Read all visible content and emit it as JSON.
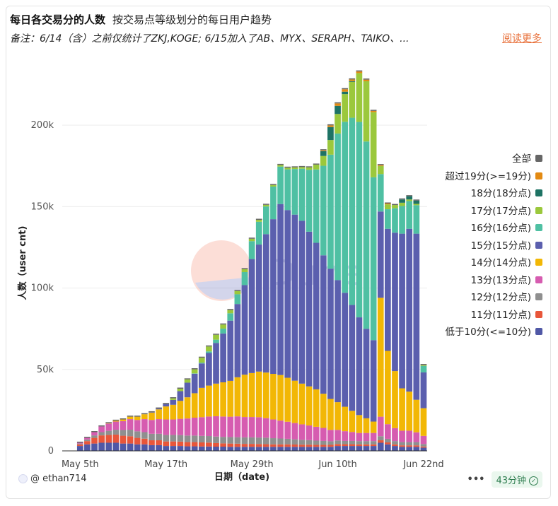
{
  "header": {
    "title": "每日各交易分的人数",
    "subtitle": "按交易点等级划分的每日用户趋势",
    "note": "备注：6/14（含）之前仅统计了ZKJ,KOGE; 6/15加入了AB、MYX、SERAPH、TAIKO、...",
    "read_more": "阅读更多"
  },
  "footer": {
    "author": "@ ethan714",
    "more": "•••",
    "time_badge": "43分钟",
    "check": "✓"
  },
  "watermark": "Dune",
  "colors": {
    "background": "#ffffff",
    "link": "#e8703a",
    "badge_bg": "#eaf7ee",
    "badge_text": "#2e7d4f"
  },
  "chart_data": {
    "type": "bar",
    "stacked": true,
    "title": "",
    "xlabel": "日期（date)",
    "ylabel": "人数（user cnt)",
    "ylim": [
      0,
      240000
    ],
    "yticks": [
      0,
      50000,
      100000,
      150000,
      200000
    ],
    "ytick_labels": [
      "0",
      "50k",
      "100k",
      "150k",
      "200k"
    ],
    "xtick_labels": [
      "May 5th",
      "May 17th",
      "May 29th",
      "Jun 10th",
      "Jun 22nd"
    ],
    "xtick_dates": [
      "2025-05-05",
      "2025-05-17",
      "2025-05-29",
      "2025-06-10",
      "2025-06-22"
    ],
    "x_start": "2025-05-03",
    "x_end": "2025-06-23",
    "grid": true,
    "legend_position": "right",
    "dates": [
      "2025-05-05",
      "2025-05-06",
      "2025-05-07",
      "2025-05-08",
      "2025-05-09",
      "2025-05-10",
      "2025-05-11",
      "2025-05-12",
      "2025-05-13",
      "2025-05-14",
      "2025-05-15",
      "2025-05-16",
      "2025-05-17",
      "2025-05-18",
      "2025-05-19",
      "2025-05-20",
      "2025-05-21",
      "2025-05-22",
      "2025-05-23",
      "2025-05-24",
      "2025-05-25",
      "2025-05-26",
      "2025-05-27",
      "2025-05-28",
      "2025-05-29",
      "2025-05-30",
      "2025-05-31",
      "2025-06-01",
      "2025-06-02",
      "2025-06-03",
      "2025-06-04",
      "2025-06-05",
      "2025-06-06",
      "2025-06-07",
      "2025-06-08",
      "2025-06-09",
      "2025-06-10",
      "2025-06-11",
      "2025-06-12",
      "2025-06-13",
      "2025-06-14",
      "2025-06-15",
      "2025-06-16",
      "2025-06-17",
      "2025-06-18",
      "2025-06-19",
      "2025-06-20",
      "2025-06-21",
      "2025-06-22"
    ],
    "legend_extra": {
      "name": "全部",
      "color": "#666666"
    },
    "series": [
      {
        "name": "低于10分(<=10分)",
        "color": "#5058a6",
        "values": [
          3000,
          4000,
          4500,
          5000,
          5000,
          5000,
          4500,
          4500,
          4000,
          4000,
          3500,
          3500,
          3000,
          3000,
          3000,
          2800,
          2800,
          2700,
          2700,
          2600,
          2600,
          2500,
          2500,
          2500,
          2500,
          2500,
          2500,
          2500,
          2500,
          2500,
          2500,
          2500,
          2500,
          2500,
          2500,
          2500,
          3000,
          3000,
          3000,
          3000,
          3000,
          3000,
          5000,
          4000,
          3000,
          2500,
          2500,
          2500,
          2000
        ]
      },
      {
        "name": "11分(11分点)",
        "color": "#e8563a",
        "values": [
          1000,
          2000,
          3500,
          4500,
          4800,
          5000,
          4800,
          4500,
          4000,
          3500,
          3000,
          3000,
          2800,
          2800,
          2700,
          2600,
          2600,
          2500,
          2400,
          2200,
          2000,
          2000,
          1900,
          1800,
          1800,
          1700,
          1600,
          1500,
          1500,
          1500,
          1400,
          1300,
          1300,
          1200,
          1200,
          1200,
          1200,
          1100,
          1100,
          1000,
          1000,
          1000,
          1500,
          1200,
          1000,
          900,
          900,
          900,
          700
        ]
      },
      {
        "name": "12分(12分点)",
        "color": "#8f8f8f",
        "values": [
          500,
          1000,
          1500,
          2000,
          2500,
          3000,
          3500,
          4000,
          4000,
          4000,
          4000,
          4000,
          4000,
          4000,
          4000,
          4000,
          4000,
          4000,
          4000,
          4000,
          4000,
          4000,
          4000,
          4000,
          4000,
          4000,
          4000,
          3800,
          3600,
          3400,
          3200,
          3000,
          2800,
          2600,
          2400,
          2200,
          2200,
          2000,
          2000,
          2000,
          2000,
          2000,
          2500,
          2200,
          2000,
          2000,
          2000,
          2000,
          1500
        ]
      },
      {
        "name": "13分(13分点)",
        "color": "#d65cb0",
        "values": [
          500,
          1000,
          2000,
          3500,
          4500,
          5000,
          5500,
          6500,
          7000,
          8000,
          8500,
          9000,
          9500,
          9500,
          10000,
          10500,
          11000,
          11500,
          12000,
          12500,
          12500,
          12500,
          12800,
          12500,
          12500,
          12500,
          12000,
          11500,
          11000,
          10500,
          10000,
          9500,
          9000,
          8500,
          8000,
          7000,
          6500,
          6000,
          5500,
          5000,
          5000,
          5000,
          12000,
          9000,
          8000,
          7000,
          7000,
          6000,
          5000
        ]
      },
      {
        "name": "14分(14分点)",
        "color": "#f2b705",
        "values": [
          0,
          0,
          0,
          0,
          200,
          500,
          1000,
          1500,
          2000,
          3000,
          4500,
          6000,
          8000,
          9000,
          11000,
          13000,
          15000,
          18000,
          19000,
          20000,
          21000,
          22000,
          24000,
          26000,
          27000,
          28000,
          28000,
          28000,
          28000,
          27000,
          26000,
          25000,
          24000,
          23000,
          21000,
          19000,
          17000,
          15000,
          13000,
          11000,
          9000,
          7000,
          73000,
          45000,
          35000,
          26000,
          24000,
          20000,
          17000
        ]
      },
      {
        "name": "15分(15分点)",
        "color": "#5b5fae",
        "values": [
          0,
          0,
          0,
          0,
          0,
          0,
          0,
          0,
          0,
          0,
          200,
          500,
          1500,
          3000,
          6000,
          9000,
          12000,
          15000,
          20000,
          25000,
          30000,
          37000,
          45000,
          55000,
          70000,
          78000,
          85000,
          95000,
          105000,
          103000,
          102000,
          100000,
          95000,
          90000,
          85000,
          80000,
          75000,
          70000,
          65000,
          60000,
          55000,
          50000,
          53000,
          75000,
          85000,
          95000,
          100000,
          102000,
          22000
        ]
      },
      {
        "name": "16分(16分点)",
        "color": "#4fc0a3",
        "values": [
          0,
          0,
          0,
          0,
          0,
          0,
          0,
          0,
          0,
          0,
          0,
          0,
          0,
          0,
          0,
          0,
          200,
          500,
          1000,
          2000,
          3000,
          4500,
          6000,
          8000,
          11000,
          14000,
          17000,
          20000,
          23000,
          25000,
          28000,
          32000,
          38000,
          45000,
          55000,
          70000,
          90000,
          105000,
          115000,
          120000,
          115000,
          100000,
          23000,
          12000,
          15000,
          17000,
          17000,
          17500,
          4000
        ]
      },
      {
        "name": "17分(17分点)",
        "color": "#9bc83c",
        "values": [
          0,
          0,
          0,
          0,
          0,
          0,
          0,
          0,
          0,
          0,
          0,
          0,
          0,
          1000,
          1500,
          2000,
          2500,
          3000,
          3000,
          3000,
          2500,
          2000,
          2000,
          1800,
          1500,
          1200,
          1000,
          1000,
          1000,
          1000,
          1000,
          1000,
          1500,
          3000,
          6000,
          9000,
          12000,
          17000,
          22000,
          30000,
          37000,
          40000,
          5000,
          3000,
          2000,
          2000,
          1000,
          800,
          500
        ]
      },
      {
        "name": "18分(18分点)",
        "color": "#1e7364",
        "values": [
          0,
          0,
          0,
          0,
          0,
          0,
          0,
          0,
          0,
          0,
          0,
          0,
          0,
          0,
          0,
          0,
          0,
          0,
          0,
          0,
          0,
          0,
          0,
          0,
          0,
          0,
          0,
          0,
          0,
          0,
          0,
          0,
          0,
          0,
          3000,
          8000,
          5000,
          1500,
          500,
          0,
          0,
          0,
          0,
          0,
          0,
          2000,
          2000,
          2000,
          0
        ]
      },
      {
        "name": "超过19分(>=19分)",
        "color": "#e38a12",
        "values": [
          0,
          0,
          0,
          0,
          0,
          0,
          0,
          0,
          0,
          0,
          0,
          0,
          0,
          0,
          0,
          0,
          0,
          0,
          0,
          0,
          0,
          0,
          0,
          0,
          0,
          0,
          0,
          0,
          0,
          0,
          0,
          0,
          0,
          0,
          500,
          1000,
          1500,
          1500,
          1000,
          1000,
          1000,
          800,
          500,
          500,
          0,
          0,
          0,
          0,
          0
        ]
      }
    ]
  }
}
